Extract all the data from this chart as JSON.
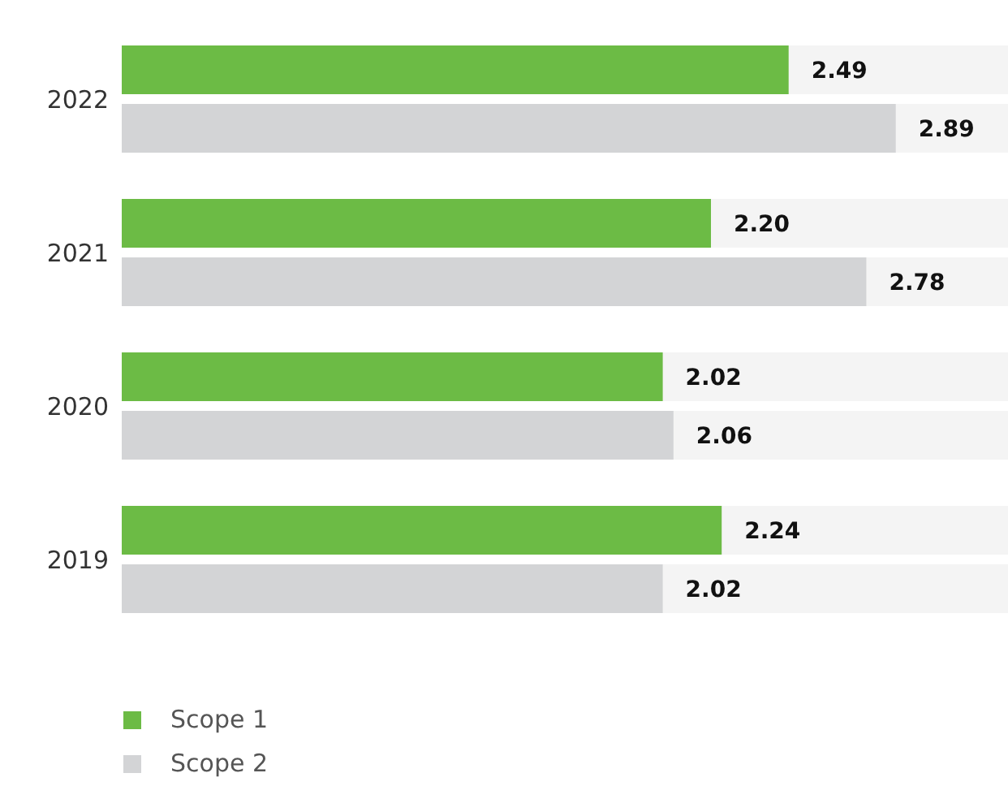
{
  "chart_data": {
    "type": "bar",
    "orientation": "horizontal",
    "categories": [
      "2022",
      "2021",
      "2020",
      "2019"
    ],
    "series": [
      {
        "name": "Scope 1",
        "color": "#6cbb45",
        "values": [
          2.49,
          2.2,
          2.02,
          2.24
        ],
        "value_labels": [
          "2.49",
          "2.20",
          "2.02",
          "2.24"
        ]
      },
      {
        "name": "Scope 2",
        "color": "#d3d4d6",
        "values": [
          2.89,
          2.78,
          2.06,
          2.02
        ],
        "value_labels": [
          "2.89",
          "2.78",
          "2.06",
          "2.02"
        ]
      }
    ],
    "data_labels": true,
    "legend": "bottom left"
  }
}
